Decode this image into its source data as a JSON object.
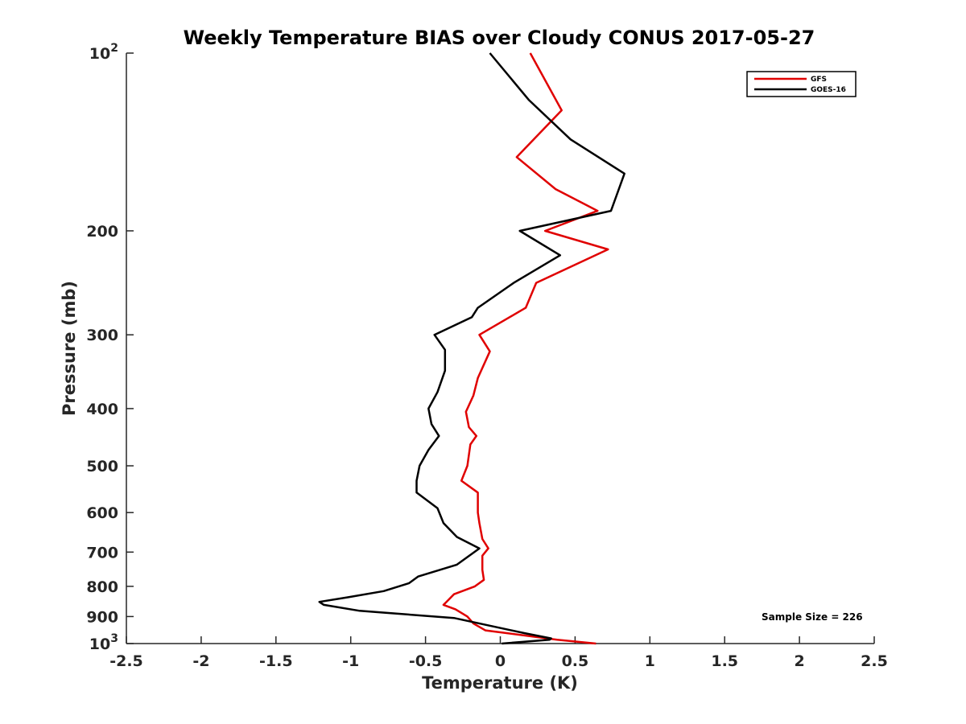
{
  "chart_data": {
    "type": "line",
    "title": "Weekly Temperature BIAS over Cloudy CONUS 2017-05-27",
    "xlabel": "Temperature (K)",
    "ylabel": "Pressure (mb)",
    "xlim": [
      -2.5,
      2.5
    ],
    "ylim": [
      100,
      1000
    ],
    "y_scale": "log",
    "y_reversed": true,
    "x_ticks": [
      "-2.5",
      "-2",
      "-1.5",
      "-1",
      "-0.5",
      "0",
      "0.5",
      "1",
      "1.5",
      "2",
      "2.5"
    ],
    "y_ticks": [
      {
        "value": 100,
        "base": "10",
        "exp": "2"
      },
      {
        "value": 200,
        "label": "200"
      },
      {
        "value": 300,
        "label": "300"
      },
      {
        "value": 400,
        "label": "400"
      },
      {
        "value": 500,
        "label": "500"
      },
      {
        "value": 600,
        "label": "600"
      },
      {
        "value": 700,
        "label": "700"
      },
      {
        "value": 800,
        "label": "800"
      },
      {
        "value": 900,
        "label": "900"
      },
      {
        "value": 1000,
        "base": "10",
        "exp": "3"
      }
    ],
    "grid": false,
    "legend_position": "top-right",
    "annotation": "Sample Size = 226",
    "series": [
      {
        "name": "GFS",
        "color": "#e00000",
        "points": [
          [
            0.2,
            100
          ],
          [
            0.41,
            125
          ],
          [
            0.11,
            150
          ],
          [
            0.37,
            170
          ],
          [
            0.65,
            185
          ],
          [
            0.3,
            200
          ],
          [
            0.72,
            215
          ],
          [
            0.24,
            245
          ],
          [
            0.17,
            270
          ],
          [
            -0.14,
            300
          ],
          [
            -0.07,
            320
          ],
          [
            -0.15,
            355
          ],
          [
            -0.18,
            380
          ],
          [
            -0.23,
            405
          ],
          [
            -0.21,
            430
          ],
          [
            -0.16,
            445
          ],
          [
            -0.2,
            460
          ],
          [
            -0.22,
            500
          ],
          [
            -0.26,
            530
          ],
          [
            -0.15,
            555
          ],
          [
            -0.15,
            600
          ],
          [
            -0.14,
            625
          ],
          [
            -0.12,
            665
          ],
          [
            -0.08,
            690
          ],
          [
            -0.12,
            710
          ],
          [
            -0.12,
            750
          ],
          [
            -0.11,
            780
          ],
          [
            -0.17,
            800
          ],
          [
            -0.31,
            825
          ],
          [
            -0.36,
            850
          ],
          [
            -0.38,
            860
          ],
          [
            -0.3,
            875
          ],
          [
            -0.22,
            900
          ],
          [
            -0.18,
            925
          ],
          [
            -0.1,
            950
          ],
          [
            0.38,
            985
          ],
          [
            0.64,
            1000
          ]
        ]
      },
      {
        "name": "GOES-16",
        "color": "#000000",
        "points": [
          [
            -0.07,
            100
          ],
          [
            0.19,
            120
          ],
          [
            0.47,
            140
          ],
          [
            0.83,
            160
          ],
          [
            0.74,
            185
          ],
          [
            0.13,
            200
          ],
          [
            0.4,
            220
          ],
          [
            0.09,
            245
          ],
          [
            -0.15,
            270
          ],
          [
            -0.19,
            280
          ],
          [
            -0.44,
            300
          ],
          [
            -0.37,
            318
          ],
          [
            -0.37,
            345
          ],
          [
            -0.42,
            375
          ],
          [
            -0.48,
            400
          ],
          [
            -0.46,
            425
          ],
          [
            -0.41,
            445
          ],
          [
            -0.48,
            470
          ],
          [
            -0.54,
            500
          ],
          [
            -0.56,
            530
          ],
          [
            -0.56,
            555
          ],
          [
            -0.42,
            590
          ],
          [
            -0.38,
            625
          ],
          [
            -0.29,
            660
          ],
          [
            -0.14,
            690
          ],
          [
            -0.29,
            735
          ],
          [
            -0.55,
            770
          ],
          [
            -0.61,
            790
          ],
          [
            -0.78,
            815
          ],
          [
            -1.02,
            835
          ],
          [
            -1.21,
            850
          ],
          [
            -1.18,
            860
          ],
          [
            -0.94,
            880
          ],
          [
            -0.31,
            905
          ],
          [
            0.16,
            960
          ],
          [
            0.34,
            980
          ],
          [
            0.33,
            985
          ],
          [
            0.01,
            1000
          ]
        ]
      }
    ]
  }
}
